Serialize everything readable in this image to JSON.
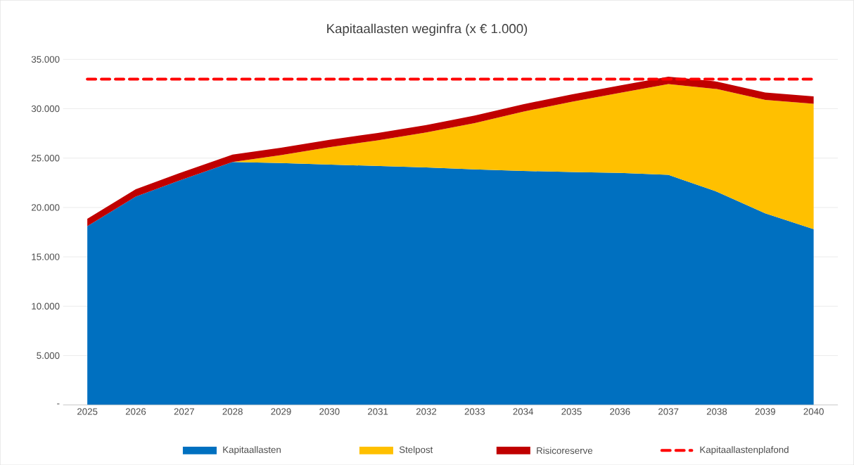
{
  "chart_data": {
    "type": "area",
    "title": "Kapitaallasten weginfra (x € 1.000)",
    "categories": [
      "2025",
      "2026",
      "2027",
      "2028",
      "2029",
      "2030",
      "2031",
      "2032",
      "2033",
      "2034",
      "2035",
      "2036",
      "2037",
      "2038",
      "2039",
      "2040"
    ],
    "stacked": true,
    "series": [
      {
        "name": "Kapitaallasten",
        "color": "#0070c0",
        "values": [
          18100,
          21100,
          22900,
          24600,
          24500,
          24350,
          24200,
          24050,
          23850,
          23700,
          23600,
          23500,
          23300,
          21600,
          19400,
          17800
        ]
      },
      {
        "name": "Stelpost",
        "color": "#ffc000",
        "values": [
          0,
          0,
          0,
          0,
          800,
          1750,
          2600,
          3550,
          4700,
          6000,
          7100,
          8100,
          9200,
          10400,
          11500,
          12700
        ]
      },
      {
        "name": "Risicoreserve",
        "color": "#c00000",
        "values": [
          750,
          750,
          750,
          750,
          750,
          750,
          750,
          750,
          750,
          750,
          750,
          750,
          750,
          750,
          750,
          750
        ]
      }
    ],
    "ref_lines": [
      {
        "axis": "y",
        "value": 33000,
        "label": "Kapitaallastenplafond",
        "color": "#ff0000",
        "line_style": "dashed"
      }
    ],
    "ylim": [
      0,
      35000
    ],
    "yticks": [
      {
        "value": 0,
        "label": "-"
      },
      {
        "value": 5000,
        "label": "5.000"
      },
      {
        "value": 10000,
        "label": "10.000"
      },
      {
        "value": 15000,
        "label": "15.000"
      },
      {
        "value": 20000,
        "label": "20.000"
      },
      {
        "value": 25000,
        "label": "25.000"
      },
      {
        "value": 30000,
        "label": "30.000"
      },
      {
        "value": 35000,
        "label": "35.000"
      }
    ],
    "grid": "y",
    "legend": "bottom"
  }
}
